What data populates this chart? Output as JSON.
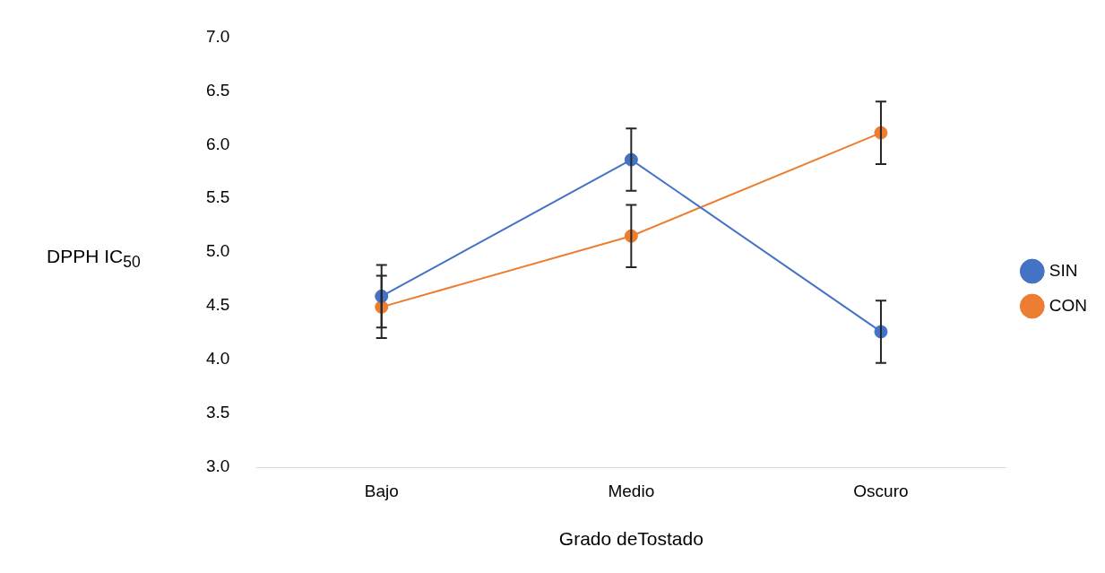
{
  "chart_data": {
    "type": "line",
    "xlabel": "Grado deTostado",
    "ylabel": "DPPH IC$_{50}$",
    "categories": [
      "Bajo",
      "Medio",
      "Oscuro"
    ],
    "series": [
      {
        "name": "SIN",
        "color": "#4472c4",
        "values": [
          4.59,
          5.86,
          4.26
        ],
        "errors": [
          0.29,
          0.29,
          0.29
        ]
      },
      {
        "name": "CON",
        "color": "#ed7d31",
        "values": [
          4.49,
          5.15,
          6.11
        ],
        "errors": [
          0.29,
          0.29,
          0.29
        ]
      }
    ],
    "ylim": [
      3,
      7
    ],
    "yticks": [
      {
        "value": 3,
        "label": "3.0"
      },
      {
        "value": 3.5,
        "label": "3.5"
      },
      {
        "value": 4,
        "label": "4.0"
      },
      {
        "value": 4.5,
        "label": "4.5"
      },
      {
        "value": 5,
        "label": "5.0"
      },
      {
        "value": 5.5,
        "label": "5.5"
      },
      {
        "value": 6,
        "label": "6.0"
      },
      {
        "value": 6.5,
        "label": "6.5"
      },
      {
        "value": 7,
        "label": "7.0"
      }
    ],
    "grid": false,
    "legend": "right",
    "marker": "circle",
    "line_style": "solid"
  }
}
